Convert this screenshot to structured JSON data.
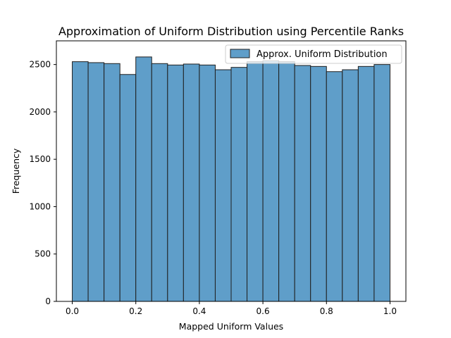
{
  "chart_data": {
    "type": "bar",
    "title": "Approximation of Uniform Distribution using Percentile Ranks",
    "xlabel": "Mapped Uniform Values",
    "ylabel": "Frequency",
    "xlim": [
      -0.05,
      1.05
    ],
    "ylim": [
      0,
      2750
    ],
    "xticks": [
      0.0,
      0.2,
      0.4,
      0.6,
      0.8,
      1.0
    ],
    "xtick_labels": [
      "0.0",
      "0.2",
      "0.4",
      "0.6",
      "0.8",
      "1.0"
    ],
    "yticks": [
      0,
      500,
      1000,
      1500,
      2000,
      2500
    ],
    "ytick_labels": [
      "0",
      "500",
      "1000",
      "1500",
      "2000",
      "2500"
    ],
    "bin_edges": [
      0.0,
      0.05,
      0.1,
      0.15,
      0.2,
      0.25,
      0.3,
      0.35,
      0.4,
      0.45,
      0.5,
      0.55,
      0.6,
      0.65,
      0.7,
      0.75,
      0.8,
      0.85,
      0.9,
      0.95,
      1.0
    ],
    "values": [
      2530,
      2520,
      2510,
      2395,
      2580,
      2510,
      2495,
      2505,
      2495,
      2445,
      2470,
      2530,
      2540,
      2530,
      2490,
      2480,
      2425,
      2445,
      2480,
      2500
    ],
    "series": [
      {
        "name": "Approx. Uniform Distribution",
        "color": "#5f9ec9",
        "edgecolor": "#1f1f1f"
      }
    ],
    "legend": {
      "position": "top-right"
    },
    "grid": false
  }
}
